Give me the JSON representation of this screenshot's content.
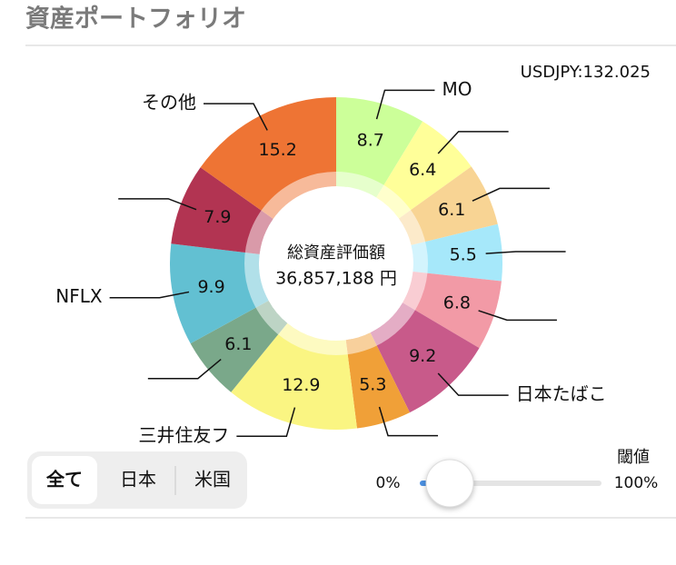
{
  "header": {
    "title": "資産ポートフォリオ",
    "rate": "USDJPY:132.025"
  },
  "chart_data": {
    "type": "pie",
    "center_title": "総資産評価額",
    "center_value": "36,857,188 円",
    "categories": [
      "MO",
      null,
      null,
      null,
      null,
      "日本たばこ",
      null,
      "三井住友フ",
      null,
      "NFLX",
      null,
      "その他"
    ],
    "values": [
      8.7,
      6.4,
      6.1,
      5.5,
      6.8,
      9.2,
      5.3,
      12.9,
      6.1,
      9.9,
      7.9,
      15.2
    ],
    "colors": [
      "#ccff99",
      "#ffff99",
      "#f8d494",
      "#a6e8fa",
      "#f29aa6",
      "#c85a8a",
      "#f0a038",
      "#faf582",
      "#7aa88a",
      "#62c0d2",
      "#b23452",
      "#ee7434"
    ]
  },
  "controls": {
    "segments": [
      "全て",
      "日本",
      "米国"
    ],
    "threshold_label": "閾値",
    "min_label": "0%",
    "max_label": "100%"
  }
}
